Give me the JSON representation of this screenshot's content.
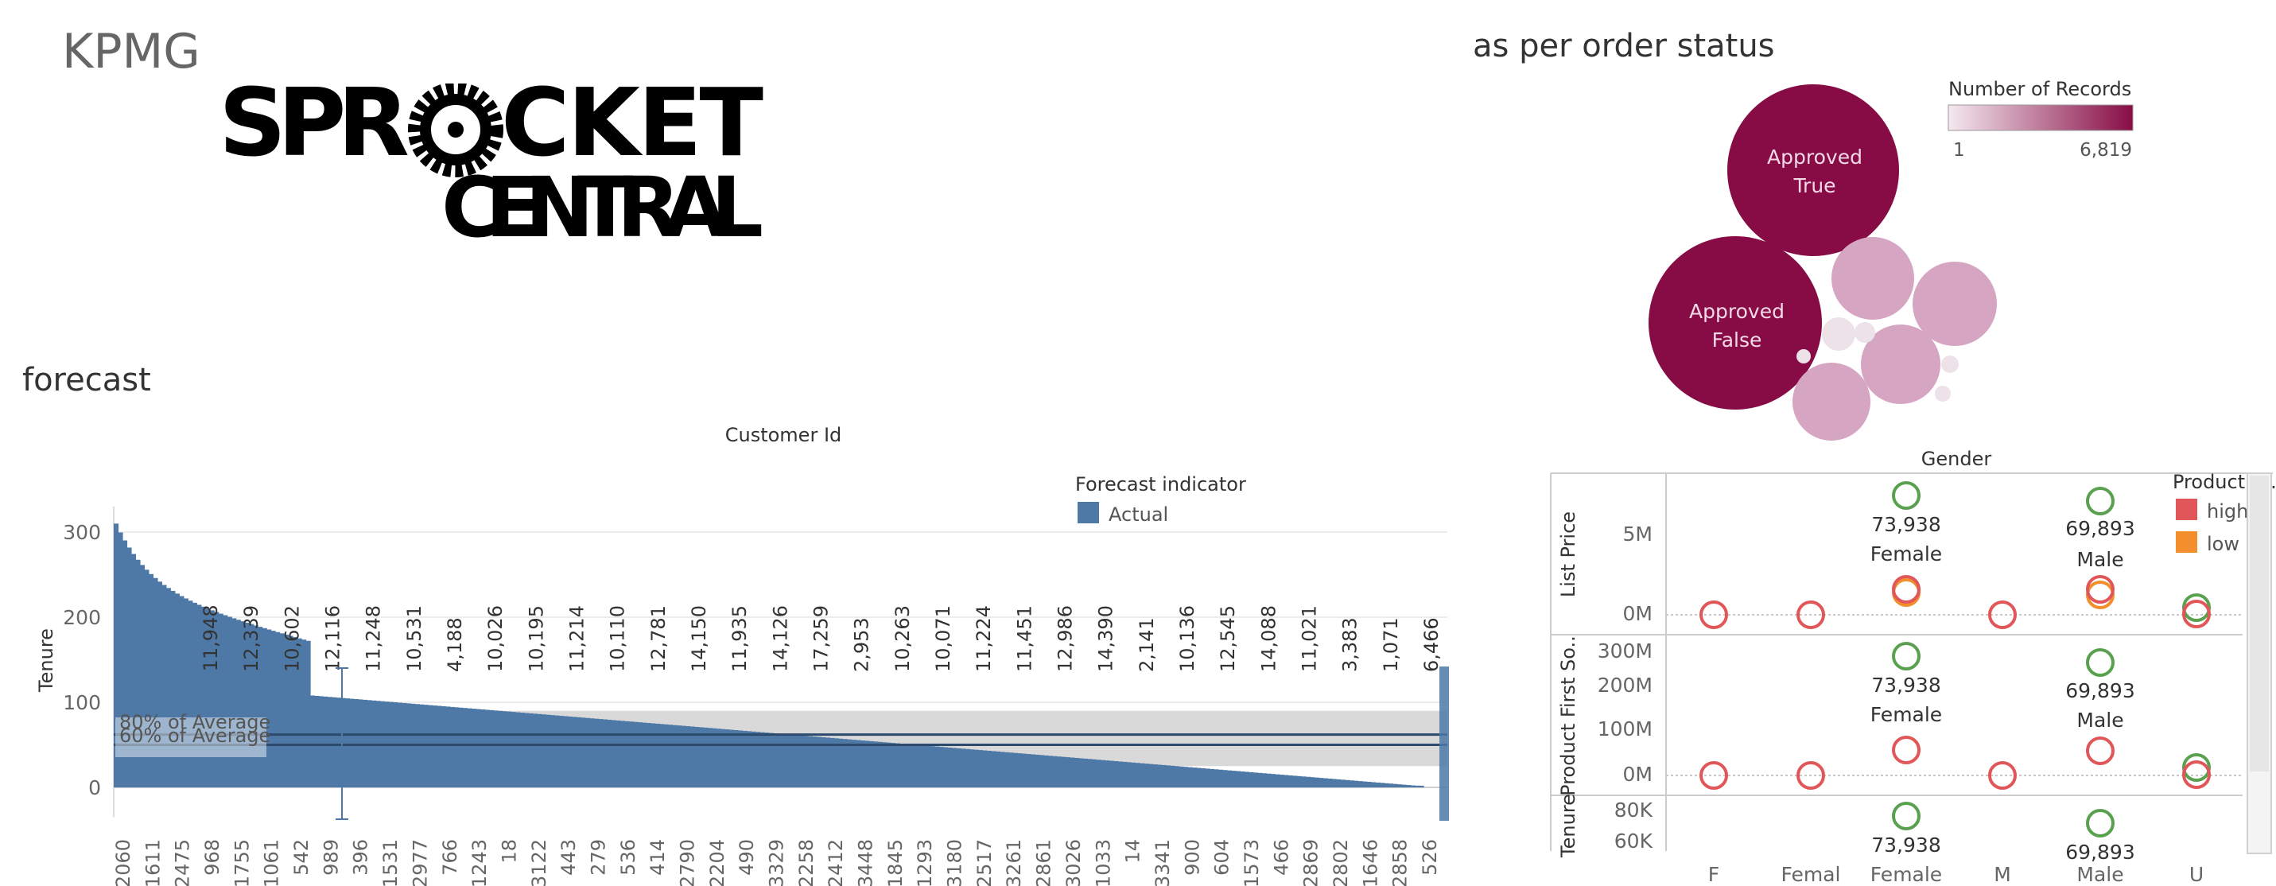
{
  "header": {
    "kpmg": "KPMG"
  },
  "logo": {
    "line1_left": "SPR",
    "line1_right": "CKET",
    "line2": "CENTRAL"
  },
  "sections": {
    "forecast": "forecast",
    "order_status": "as per order status"
  },
  "forecast_chart": {
    "title": "Customer Id",
    "ylabel": "Tenure",
    "legend_title": "Forecast indicator",
    "legend_item": "Actual",
    "ref_label_1": "80% of Average",
    "ref_label_2": "60% of Average",
    "colors": {
      "bar": "#4e79a7",
      "band": "#d9d9d9",
      "line": "#2c4a6b"
    }
  },
  "order_chart": {
    "legend_title": "Number of Records",
    "legend_min": "1",
    "legend_max": "6,819",
    "colors": {
      "dark": "#870c45",
      "light": "#d6a5c1",
      "faint": "#ece2e8"
    }
  },
  "gender_chart": {
    "title": "Gender",
    "legend_title": "Product C..",
    "legend_items": [
      {
        "label": "high",
        "color": "#e15759"
      },
      {
        "label": "low",
        "color": "#f28e2b"
      }
    ],
    "total_color": "#59a14f",
    "rows": [
      "List Price",
      "Product First So..",
      "Tenure"
    ],
    "labels": {
      "female_value": "73,938",
      "male_value": "69,893",
      "female": "Female",
      "male": "Male"
    }
  },
  "chart_data": [
    {
      "type": "bar",
      "title": "Customer Id",
      "xlabel": "",
      "ylabel": "Tenure",
      "ylim": [
        -35,
        340
      ],
      "yticks": [
        0,
        100,
        200,
        300
      ],
      "x_tick_labels": [
        "2060",
        "1611",
        "2475",
        "968",
        "1755",
        "1061",
        "542",
        "989",
        "396",
        "1531",
        "2977",
        "766",
        "1243",
        "18",
        "3122",
        "443",
        "279",
        "536",
        "414",
        "2790",
        "2204",
        "490",
        "3329",
        "2258",
        "2412",
        "3448",
        "1845",
        "1293",
        "3180",
        "2517",
        "3261",
        "2861",
        "3026",
        "1033",
        "14",
        "3341",
        "900",
        "604",
        "1573",
        "466",
        "2869",
        "2802",
        "1646",
        "2858",
        "526"
      ],
      "data_labels": [
        "11,948",
        "12,339",
        "10,602",
        "12,116",
        "11,248",
        "10,531",
        "4,188",
        "10,026",
        "10,195",
        "11,214",
        "10,110",
        "12,781",
        "14,150",
        "11,935",
        "14,126",
        "17,259",
        "2,953",
        "10,263",
        "10,071",
        "11,224",
        "11,451",
        "12,986",
        "14,390",
        "2,141",
        "10,136",
        "12,545",
        "14,088",
        "11,021",
        "3,383",
        "1,071",
        "6,466"
      ],
      "legend": {
        "title": "Forecast indicator",
        "entries": [
          "Actual"
        ],
        "placement": "top-right"
      },
      "reference_lines": [
        "80% of Average",
        "60% of Average"
      ],
      "grid": true
    },
    {
      "type": "scatter",
      "title": "Gender",
      "categories": [
        "F",
        "Femal",
        "Female",
        "M",
        "Male",
        "U"
      ],
      "row_axes": [
        {
          "label": "List Price",
          "ticks": [
            "5M",
            "0M"
          ]
        },
        {
          "label": "Product First So..",
          "ticks": [
            "300M",
            "200M",
            "100M",
            "0M"
          ]
        },
        {
          "label": "Tenure",
          "ticks": [
            "80K",
            "60K"
          ]
        }
      ],
      "legend": {
        "title": "Product C..",
        "entries": [
          "high",
          "low"
        ],
        "placement": "right"
      },
      "point_labels": [
        "73,938",
        "Female",
        "69,893",
        "Male"
      ]
    }
  ]
}
